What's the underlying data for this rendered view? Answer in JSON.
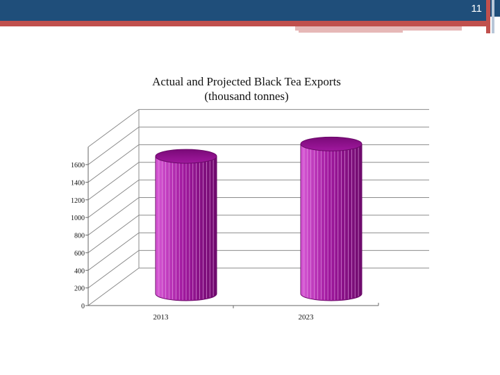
{
  "slide": {
    "number": "11",
    "colors": {
      "header": "#1f4e7a",
      "accent_red": "#c0504d",
      "accent_pink": "#e6b8b7"
    }
  },
  "chart_data": {
    "type": "bar",
    "style": "3d-cylinder",
    "title": "Actual and Projected Black Tea Exports",
    "subtitle": "(thousand tonnes)",
    "categories": [
      "2013",
      "2023"
    ],
    "series": [
      {
        "values": [
          1560,
          1700
        ],
        "color": "#a0189e"
      }
    ],
    "ylim": [
      0,
      1600
    ],
    "yticks": [
      0,
      200,
      400,
      600,
      800,
      1000,
      1200,
      1400,
      1600
    ],
    "ytick_labels": [
      "0",
      "200",
      "400",
      "600",
      "800",
      "1000",
      "1200",
      "1400",
      "1600"
    ],
    "grid": true,
    "legend": "none"
  }
}
